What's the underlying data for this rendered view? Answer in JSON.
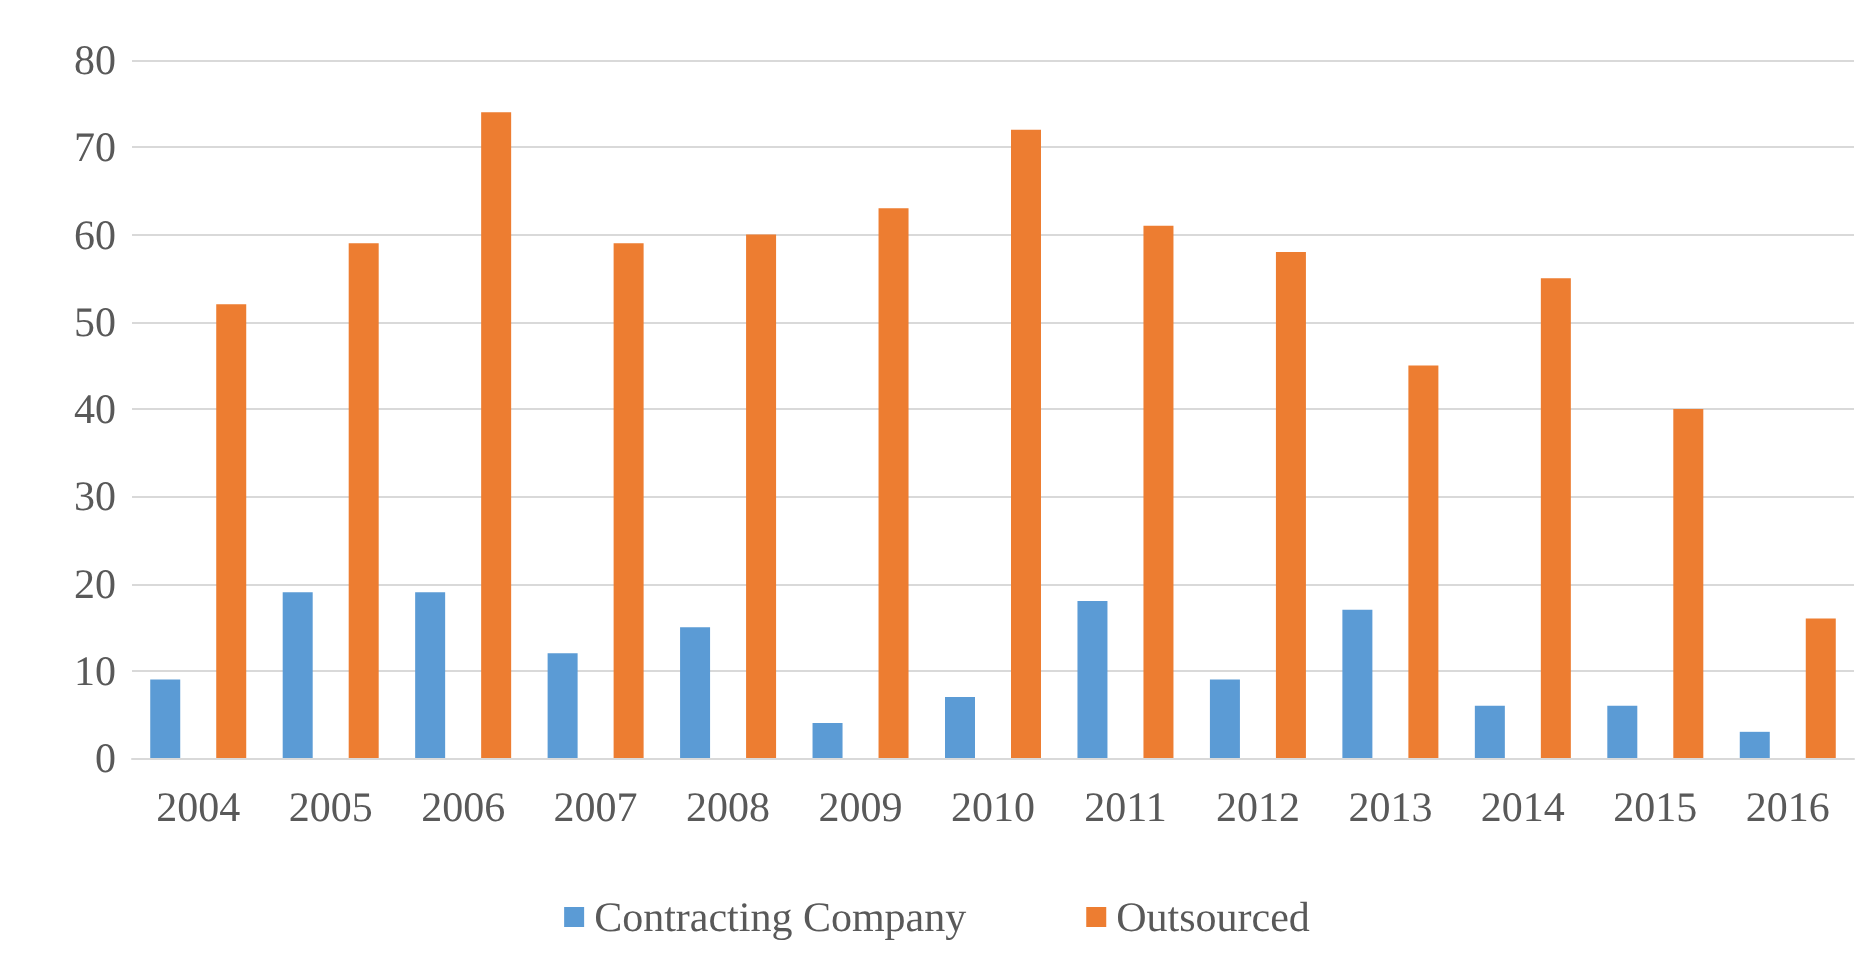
{
  "chart_data": {
    "type": "bar",
    "categories": [
      "2004",
      "2005",
      "2006",
      "2007",
      "2008",
      "2009",
      "2010",
      "2011",
      "2012",
      "2013",
      "2014",
      "2015",
      "2016"
    ],
    "series": [
      {
        "name": "Contracting Company",
        "color": "#5b9bd5",
        "values": [
          9,
          19,
          19,
          12,
          15,
          4,
          7,
          18,
          9,
          17,
          6,
          6,
          3
        ]
      },
      {
        "name": "Outsourced",
        "color": "#ed7d31",
        "values": [
          52,
          59,
          74,
          59,
          60,
          63,
          72,
          61,
          58,
          45,
          55,
          40,
          16
        ]
      }
    ],
    "ylim": [
      0,
      80
    ],
    "yticks": [
      0,
      10,
      20,
      30,
      40,
      50,
      60,
      70,
      80
    ],
    "grid": "y",
    "legend": "bottom"
  }
}
